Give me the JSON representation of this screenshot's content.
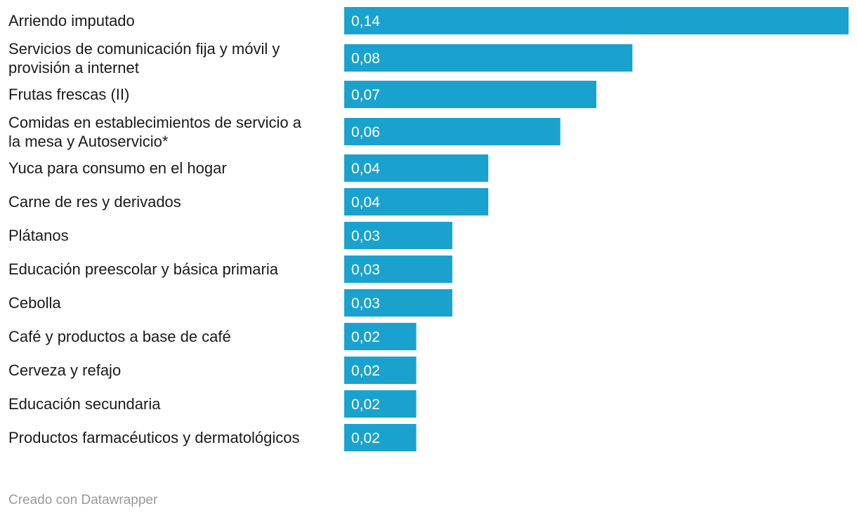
{
  "chart_data": {
    "type": "bar",
    "orientation": "horizontal",
    "bar_color": "#1aa2cf",
    "value_label_color": "#ffffff",
    "xlim": [
      0,
      0.14
    ],
    "categories": [
      "Arriendo imputado",
      "Servicios de comunicación fija y móvil y provisión a internet",
      "Frutas frescas (II)",
      "Comidas en establecimientos de servicio a la mesa y Autoservicio*",
      "Yuca para consumo en el hogar",
      "Carne de res y derivados",
      "Plátanos",
      "Educación preescolar y básica primaria",
      "Cebolla",
      "Café y productos a base de café",
      "Cerveza y refajo",
      "Educación secundaria",
      "Productos farmacéuticos y dermatológicos"
    ],
    "label_lines": [
      [
        "Arriendo imputado"
      ],
      [
        "Servicios de comunicación fija y móvil y",
        "provisión a internet"
      ],
      [
        "Frutas frescas (II)"
      ],
      [
        "Comidas en establecimientos de servicio a",
        "la mesa y Autoservicio*"
      ],
      [
        "Yuca para consumo en el hogar"
      ],
      [
        "Carne de res y derivados"
      ],
      [
        "Plátanos"
      ],
      [
        "Educación preescolar y básica primaria"
      ],
      [
        "Cebolla"
      ],
      [
        "Café y productos a base de café"
      ],
      [
        "Cerveza y refajo"
      ],
      [
        "Educación secundaria"
      ],
      [
        "Productos farmacéuticos y dermatológicos"
      ]
    ],
    "values": [
      0.14,
      0.08,
      0.07,
      0.06,
      0.04,
      0.04,
      0.03,
      0.03,
      0.03,
      0.02,
      0.02,
      0.02,
      0.02
    ],
    "value_labels": [
      "0,14",
      "0,08",
      "0,07",
      "0,06",
      "0,04",
      "0,04",
      "0,03",
      "0,03",
      "0,03",
      "0,02",
      "0,02",
      "0,02",
      "0,02"
    ]
  },
  "footer": {
    "credit": "Creado con Datawrapper"
  }
}
